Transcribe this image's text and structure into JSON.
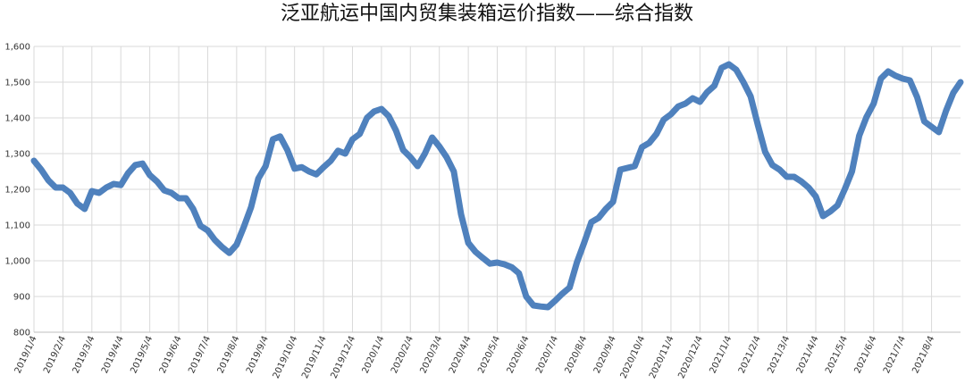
{
  "chart_data": {
    "type": "line",
    "title": "泛亚航运中国内贸集装箱运价指数——综合指数",
    "categories": [
      "2019/1/4",
      null,
      null,
      null,
      "2019/2/4",
      null,
      null,
      null,
      "2019/3/4",
      null,
      null,
      null,
      "2019/4/4",
      null,
      null,
      null,
      "2019/5/4",
      null,
      null,
      null,
      "2019/6/4",
      null,
      null,
      null,
      "2019/7/4",
      null,
      null,
      null,
      "2019/8/4",
      null,
      null,
      null,
      "2019/9/4",
      null,
      null,
      null,
      "2019/10/4",
      null,
      null,
      null,
      "2019/11/4",
      null,
      null,
      null,
      "2019/12/4",
      null,
      null,
      null,
      "2020/1/4",
      null,
      null,
      null,
      "2020/2/4",
      null,
      null,
      null,
      "2020/3/4",
      null,
      null,
      null,
      "2020/4/4",
      null,
      null,
      null,
      "2020/5/4",
      null,
      null,
      null,
      "2020/6/4",
      null,
      null,
      null,
      "2020/7/4",
      null,
      null,
      null,
      "2020/8/4",
      null,
      null,
      null,
      "2020/9/4",
      null,
      null,
      null,
      "2020/10/4",
      null,
      null,
      null,
      "2020/11/4",
      null,
      null,
      null,
      "2020/12/4",
      null,
      null,
      null,
      "2021/1/4",
      null,
      null,
      null,
      "2021/2/4",
      null,
      null,
      null,
      "2021/3/4",
      null,
      null,
      null,
      "2021/4/4",
      null,
      null,
      null,
      "2021/5/4",
      null,
      null,
      null,
      "2021/6/4",
      null,
      null,
      null,
      "2021/7/4",
      null,
      null,
      null,
      "2021/8/4",
      null,
      null,
      null,
      null
    ],
    "series": [
      {
        "name": "综合指数",
        "color": "#4f81bd",
        "values": [
          1280,
          1255,
          1225,
          1205,
          1205,
          1190,
          1160,
          1145,
          1195,
          1190,
          1205,
          1215,
          1212,
          1245,
          1268,
          1272,
          1240,
          1222,
          1197,
          1190,
          1175,
          1175,
          1145,
          1098,
          1085,
          1058,
          1038,
          1022,
          1045,
          1095,
          1150,
          1230,
          1265,
          1340,
          1348,
          1310,
          1258,
          1262,
          1250,
          1242,
          1262,
          1280,
          1308,
          1300,
          1340,
          1355,
          1400,
          1418,
          1425,
          1405,
          1365,
          1310,
          1290,
          1265,
          1300,
          1345,
          1320,
          1290,
          1250,
          1130,
          1050,
          1025,
          1008,
          992,
          995,
          990,
          982,
          965,
          900,
          875,
          872,
          870,
          888,
          908,
          925,
          995,
          1050,
          1108,
          1120,
          1145,
          1165,
          1255,
          1260,
          1265,
          1318,
          1330,
          1355,
          1395,
          1410,
          1432,
          1440,
          1455,
          1445,
          1472,
          1490,
          1540,
          1550,
          1535,
          1500,
          1460,
          1380,
          1305,
          1268,
          1255,
          1235,
          1235,
          1222,
          1205,
          1180,
          1125,
          1138,
          1155,
          1200,
          1250,
          1350,
          1402,
          1440,
          1510,
          1530,
          1518,
          1510,
          1505,
          1458,
          1390,
          1375,
          1360,
          1420,
          1470,
          1500
        ]
      }
    ],
    "ylim": [
      800,
      1600
    ],
    "yticks": [
      800,
      900,
      {
        "value": 1000,
        "label": "1,000"
      },
      {
        "value": 1100,
        "label": "1,100"
      },
      {
        "value": 1200,
        "label": "1,200"
      },
      {
        "value": 1300,
        "label": "1,300"
      },
      {
        "value": 1400,
        "label": "1,400"
      },
      {
        "value": 1500,
        "label": "1,500"
      },
      {
        "value": 1600,
        "label": "1,600"
      }
    ],
    "grid": true
  }
}
